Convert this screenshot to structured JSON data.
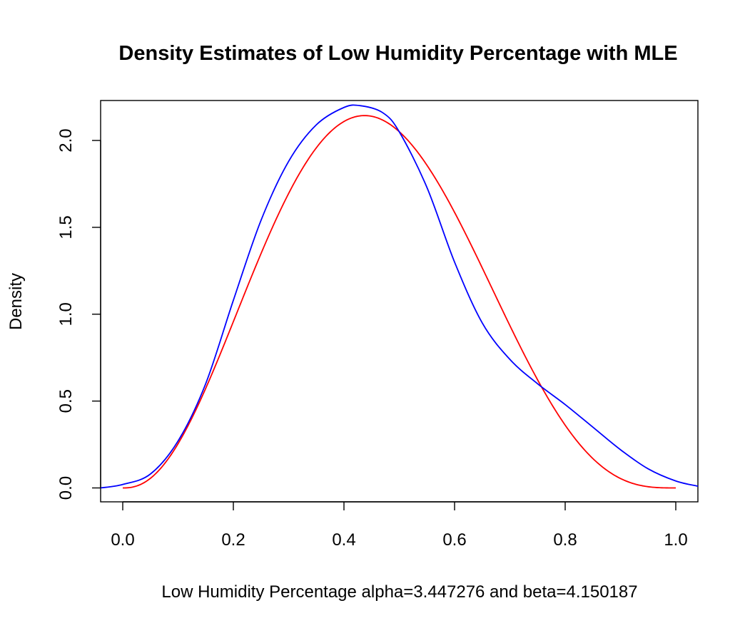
{
  "chart_data": {
    "type": "line",
    "title": "Density Estimates of Low Humidity Percentage with MLE",
    "xlabel": "Low Humidity Percentage alpha=3.447276 and beta=4.150187",
    "ylabel": "Density",
    "xlim": [
      -0.04,
      1.04
    ],
    "ylim": [
      -0.08,
      2.23
    ],
    "x_ticks": [
      "0.0",
      "0.2",
      "0.4",
      "0.6",
      "0.8",
      "1.0"
    ],
    "y_ticks": [
      "0.0",
      "0.5",
      "1.0",
      "1.5",
      "2.0"
    ],
    "grid": false,
    "series": [
      {
        "color": "#ff0000",
        "beta_params": {
          "alpha": 3.447276,
          "beta": 4.150187
        },
        "x": [
          0.0,
          0.05,
          0.1,
          0.15,
          0.2,
          0.25,
          0.3,
          0.35,
          0.4,
          0.44,
          0.5,
          0.55,
          0.6,
          0.65,
          0.7,
          0.75,
          0.8,
          0.85,
          0.9,
          0.95,
          1.0
        ],
        "values": [
          0.0,
          0.07,
          0.28,
          0.63,
          1.02,
          1.41,
          1.75,
          1.99,
          2.12,
          2.14,
          2.08,
          1.91,
          1.66,
          1.34,
          0.98,
          0.63,
          0.33,
          0.13,
          0.03,
          0.0,
          0.0
        ]
      },
      {
        "color": "#0000ff",
        "x": [
          -0.04,
          0.0,
          0.05,
          0.1,
          0.15,
          0.2,
          0.25,
          0.3,
          0.35,
          0.4,
          0.43,
          0.47,
          0.5,
          0.55,
          0.6,
          0.65,
          0.7,
          0.75,
          0.8,
          0.85,
          0.9,
          0.95,
          1.0,
          1.04
        ],
        "values": [
          0.0,
          0.02,
          0.08,
          0.27,
          0.6,
          1.08,
          1.54,
          1.88,
          2.09,
          2.19,
          2.2,
          2.16,
          2.05,
          1.73,
          1.3,
          0.95,
          0.74,
          0.6,
          0.48,
          0.35,
          0.22,
          0.11,
          0.04,
          0.01
        ]
      }
    ]
  }
}
